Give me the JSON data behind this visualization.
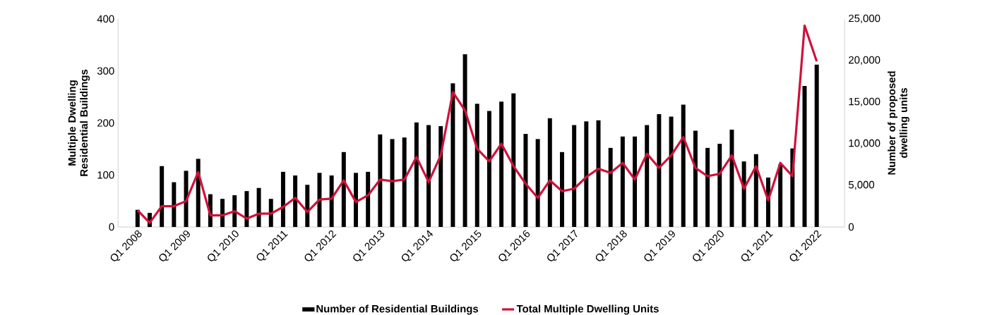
{
  "chart_data": {
    "type": "bar",
    "categories": [
      "Q1 2008",
      null,
      null,
      null,
      "Q1 2009",
      null,
      null,
      null,
      "Q1 2010",
      null,
      null,
      null,
      "Q1 2011",
      null,
      null,
      null,
      "Q1 2012",
      null,
      null,
      null,
      "Q1 2013",
      null,
      null,
      null,
      "Q1 2014",
      null,
      null,
      null,
      "Q1 2015",
      null,
      null,
      null,
      "Q1 2016",
      null,
      null,
      null,
      "Q1 2017",
      null,
      null,
      null,
      "Q1 2018",
      null,
      null,
      null,
      "Q1 2019",
      null,
      null,
      null,
      "Q1 2020",
      null,
      null,
      null,
      "Q1 2021",
      null,
      null,
      null,
      "Q1 2022"
    ],
    "series": [
      {
        "name": "Number of Residential  Buildings",
        "color": "#000000",
        "values": [
          33,
          27,
          117,
          86,
          108,
          131,
          63,
          54,
          61,
          69,
          75,
          54,
          106,
          99,
          81,
          104,
          99,
          144,
          104,
          106,
          178,
          169,
          172,
          201,
          196,
          194,
          276,
          332,
          237,
          223,
          241,
          257,
          179,
          169,
          209,
          144,
          196,
          203,
          205,
          152,
          174,
          174,
          196,
          217,
          212,
          235,
          185,
          152,
          160,
          187,
          126,
          140,
          95,
          120,
          151,
          271,
          312
        ]
      },
      {
        "name": "Total Multiple Dwelling Units",
        "type": "line",
        "axis": "y2",
        "color": "#d0103a",
        "values": [
          2000,
          500,
          2500,
          2500,
          3100,
          6600,
          1400,
          1400,
          1900,
          1000,
          1600,
          1600,
          2400,
          3500,
          1800,
          3300,
          3400,
          5600,
          3000,
          3800,
          5700,
          5500,
          5700,
          8400,
          5400,
          8600,
          16200,
          14000,
          9400,
          7900,
          10000,
          7300,
          5200,
          3500,
          5600,
          4300,
          4600,
          6000,
          7000,
          6500,
          7700,
          5700,
          8800,
          7100,
          8600,
          10800,
          7100,
          6100,
          6400,
          8600,
          4600,
          7300,
          3200,
          7700,
          6100,
          24200,
          19900
        ]
      }
    ],
    "ylabel": "Multiple Dwelling Residential Buildings",
    "y2label": "Number of proposed dwelling units",
    "ylim": [
      0,
      400
    ],
    "yticks": [
      0,
      100,
      200,
      300,
      400
    ],
    "y2lim": [
      0,
      25000
    ],
    "y2ticks": [
      {
        "value": 0,
        "label": "0"
      },
      {
        "value": 5000,
        "label": "5,000"
      },
      {
        "value": 10000,
        "label": "10,000"
      },
      {
        "value": 15000,
        "label": "15,000"
      },
      {
        "value": 20000,
        "label": "20,000"
      },
      {
        "value": 25000,
        "label": "25,000"
      }
    ],
    "legend": "bottom"
  }
}
